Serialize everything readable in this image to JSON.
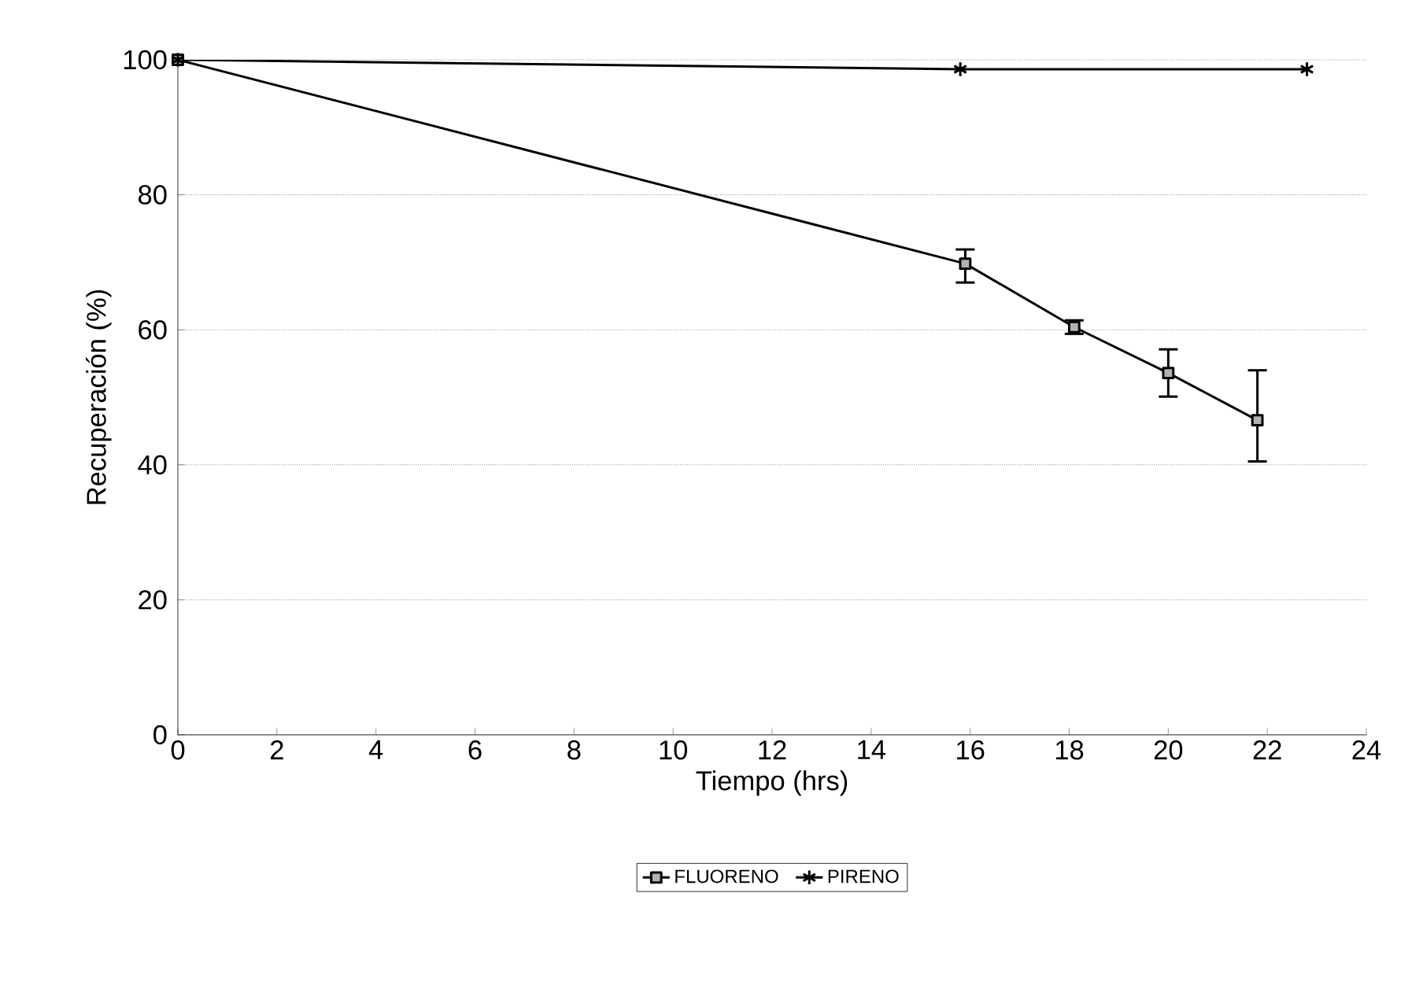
{
  "chart_data": {
    "type": "line",
    "xlabel": "Tiempo (hrs)",
    "ylabel": "Recuperación (%)",
    "xlim": [
      0,
      24
    ],
    "xticks": [
      0,
      2,
      4,
      6,
      8,
      10,
      12,
      14,
      16,
      18,
      20,
      22,
      24
    ],
    "ylim": [
      0,
      100
    ],
    "yticks": [
      0,
      20,
      40,
      60,
      80,
      100
    ],
    "grid": "y",
    "legend": "bottom",
    "line_style": "solid",
    "series": [
      {
        "name": "FLUORENO",
        "color": "#000000",
        "marker": "square",
        "x": [
          0,
          15.9,
          18.1,
          20.0,
          21.8
        ],
        "values": [
          100,
          69.8,
          60.4,
          53.6,
          46.6
        ],
        "errors": [
          null,
          [
            67,
            71.9
          ],
          1,
          [
            50.1,
            57.1
          ],
          [
            40.5,
            54
          ]
        ]
      },
      {
        "name": "PIRENO",
        "color": "#000000",
        "marker": "cross",
        "x": [
          0,
          15.8,
          22.8
        ],
        "values": [
          100,
          98.6,
          98.6
        ]
      }
    ]
  }
}
